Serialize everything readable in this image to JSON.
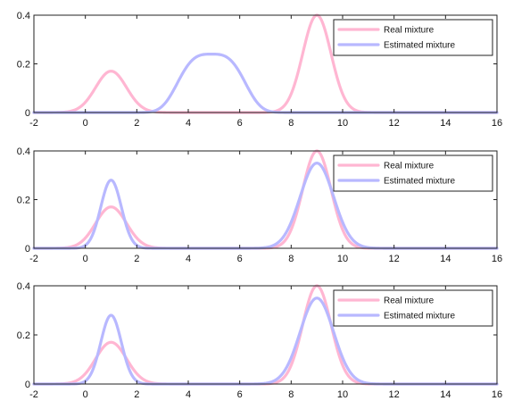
{
  "chart_data": [
    {
      "type": "line",
      "xlim": [
        -2,
        16
      ],
      "ylim": [
        0,
        0.4
      ],
      "xticks": [
        -2,
        0,
        2,
        4,
        6,
        8,
        10,
        12,
        14,
        16
      ],
      "yticks": [
        0,
        0.2,
        0.4
      ],
      "grid": false,
      "legend_position": "top-right",
      "series": [
        {
          "name": "Real mixture",
          "color": "#ffb6d2",
          "components": [
            {
              "mean": 1,
              "sd": 0.6,
              "peak": 0.17
            },
            {
              "mean": 9,
              "sd": 0.55,
              "peak": 0.4
            }
          ]
        },
        {
          "name": "Estimated mixture",
          "color": "#b8b8ff",
          "components": [
            {
              "mean": 4.9,
              "sd": 1.2,
              "peak": 0.24,
              "shape": "flat-top"
            }
          ]
        }
      ]
    },
    {
      "type": "line",
      "xlim": [
        -2,
        16
      ],
      "ylim": [
        0,
        0.4
      ],
      "xticks": [
        -2,
        0,
        2,
        4,
        6,
        8,
        10,
        12,
        14,
        16
      ],
      "yticks": [
        0,
        0.2,
        0.4
      ],
      "grid": false,
      "legend_position": "top-right",
      "series": [
        {
          "name": "Real mixture",
          "color": "#ffb6d2",
          "components": [
            {
              "mean": 1,
              "sd": 0.6,
              "peak": 0.17
            },
            {
              "mean": 9,
              "sd": 0.55,
              "peak": 0.4
            }
          ]
        },
        {
          "name": "Estimated mixture",
          "color": "#b8b8ff",
          "components": [
            {
              "mean": 1,
              "sd": 0.4,
              "peak": 0.28
            },
            {
              "mean": 9,
              "sd": 0.65,
              "peak": 0.35
            }
          ]
        }
      ]
    },
    {
      "type": "line",
      "xlim": [
        -2,
        16
      ],
      "ylim": [
        0,
        0.4
      ],
      "xticks": [
        -2,
        0,
        2,
        4,
        6,
        8,
        10,
        12,
        14,
        16
      ],
      "yticks": [
        0,
        0.2,
        0.4
      ],
      "grid": false,
      "legend_position": "top-right",
      "series": [
        {
          "name": "Real mixture",
          "color": "#ffb6d2",
          "components": [
            {
              "mean": 1,
              "sd": 0.6,
              "peak": 0.17
            },
            {
              "mean": 9,
              "sd": 0.55,
              "peak": 0.4
            }
          ]
        },
        {
          "name": "Estimated mixture",
          "color": "#b8b8ff",
          "components": [
            {
              "mean": 1,
              "sd": 0.4,
              "peak": 0.28
            },
            {
              "mean": 9,
              "sd": 0.65,
              "peak": 0.35
            }
          ]
        }
      ]
    }
  ]
}
